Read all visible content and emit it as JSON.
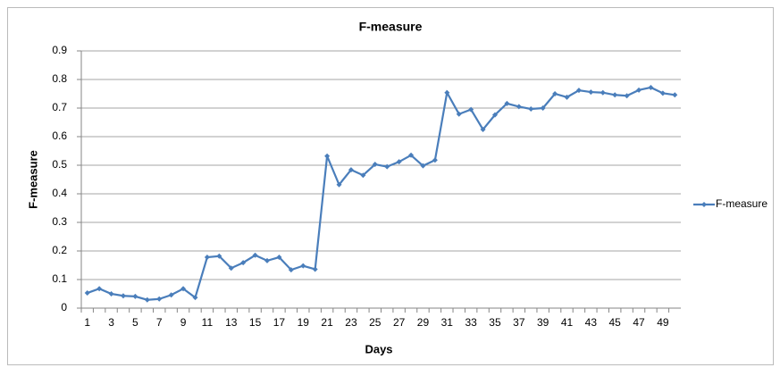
{
  "chart_data": {
    "type": "line",
    "title": "F-measure",
    "x_label": "Days",
    "y_label": "F-measure",
    "categories": [
      1,
      null,
      3,
      null,
      5,
      null,
      7,
      null,
      9,
      null,
      11,
      null,
      13,
      null,
      15,
      null,
      17,
      null,
      19,
      null,
      21,
      null,
      23,
      null,
      25,
      null,
      27,
      null,
      29,
      null,
      31,
      null,
      33,
      null,
      35,
      null,
      37,
      null,
      39,
      null,
      41,
      null,
      43,
      null,
      45,
      null,
      47,
      null,
      49,
      null
    ],
    "series": [
      {
        "name": "F-measure",
        "color": "#4a7ebb",
        "values": [
          0.053,
          0.068,
          0.05,
          0.043,
          0.041,
          0.029,
          0.032,
          0.046,
          0.068,
          0.037,
          0.178,
          0.182,
          0.14,
          0.159,
          0.185,
          0.166,
          0.178,
          0.134,
          0.148,
          0.136,
          0.532,
          0.432,
          0.484,
          0.465,
          0.503,
          0.495,
          0.512,
          0.535,
          0.498,
          0.518,
          0.754,
          0.679,
          0.695,
          0.625,
          0.676,
          0.716,
          0.705,
          0.697,
          0.7,
          0.75,
          0.738,
          0.762,
          0.756,
          0.754,
          0.746,
          0.743,
          0.763,
          0.772,
          0.752,
          0.746
        ]
      }
    ],
    "ylim": [
      0,
      0.9
    ],
    "yticks": [
      0,
      0.1,
      0.2,
      0.3,
      0.4,
      0.5,
      0.6,
      0.7,
      0.8,
      0.9
    ],
    "grid": true,
    "legend": "right"
  }
}
